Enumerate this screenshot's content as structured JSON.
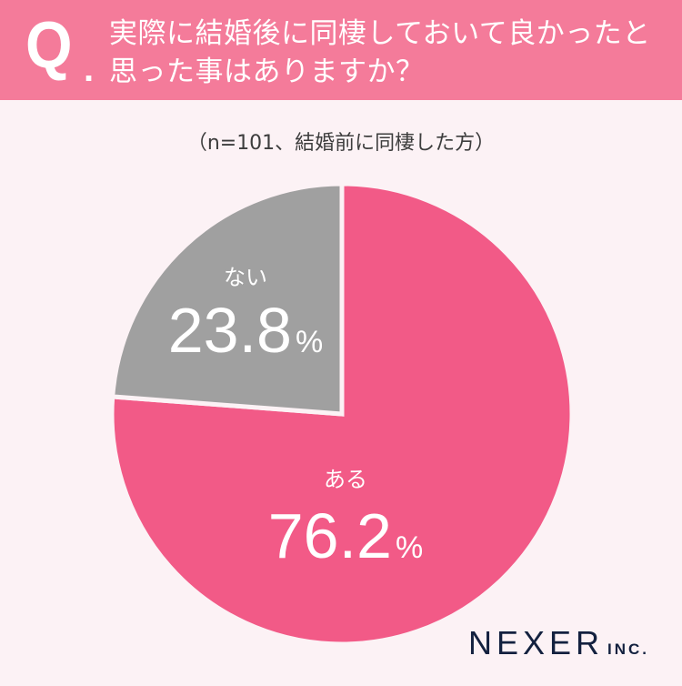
{
  "header": {
    "q_mark": "Q",
    "q_dot": ".",
    "question_line1": "実際に結婚後に同棲しておいて良かったと",
    "question_line2": "思った事はありますか？",
    "background_color": "#f47b9a"
  },
  "subtitle": "（n=101、結婚前に同棲した方）",
  "chart_data": {
    "type": "pie",
    "title": "実際に結婚後に同棲しておいて良かったと思った事はありますか？",
    "subtitle": "（n=101、結婚前に同棲した方）",
    "categories": [
      "ある",
      "ない"
    ],
    "values": [
      76.2,
      23.8
    ],
    "unit": "%",
    "colors": [
      "#f25a87",
      "#a0a0a0"
    ],
    "start_angle": "12 o'clock, clockwise",
    "legend": "none (labels inside slices)"
  },
  "labels": {
    "yes": {
      "name": "ある",
      "value": "76.2",
      "unit": "%"
    },
    "no": {
      "name": "ない",
      "value": "23.8",
      "unit": "%"
    }
  },
  "logo": {
    "main": "NEXER",
    "sub": "INC."
  }
}
